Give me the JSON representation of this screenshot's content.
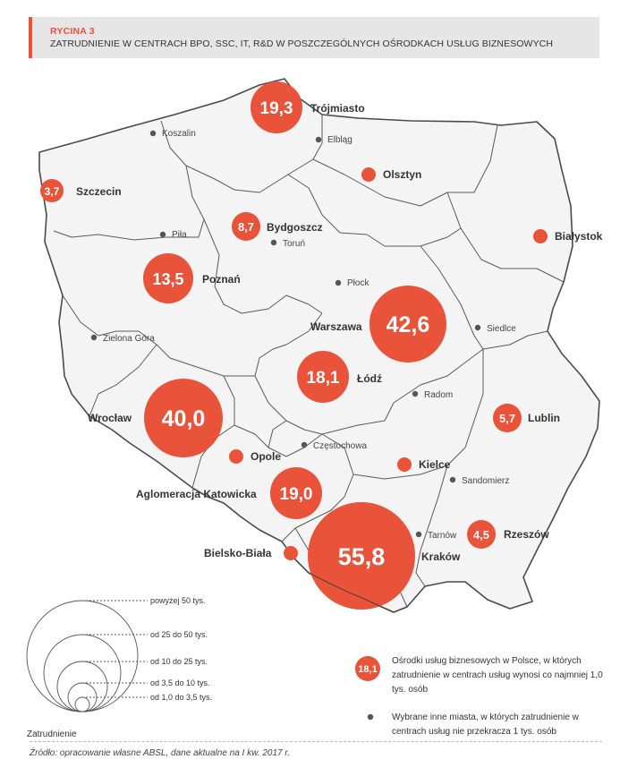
{
  "header": {
    "label": "RYCINA 3",
    "title": "ZATRUDNIENIE W CENTRACH BPO, SSC, IT, R&D W POSZCZEGÓLNYCH OŚRODKACH USŁUG BIZNESOWYCH"
  },
  "colors": {
    "accent": "#e8533a",
    "map_fill": "#f4f4f4",
    "map_border": "#4a4a4a",
    "dot": "#555555"
  },
  "centers": [
    {
      "name": "Trójmiasto",
      "value": "19,3",
      "n": 19.3
    },
    {
      "name": "Szczecin",
      "value": "3,7",
      "n": 3.7
    },
    {
      "name": "Olsztyn",
      "value": "",
      "n": 0.8
    },
    {
      "name": "Bydgoszcz",
      "value": "8,7",
      "n": 8.7
    },
    {
      "name": "Białystok",
      "value": "",
      "n": 0.8
    },
    {
      "name": "Poznań",
      "value": "13,5",
      "n": 13.5
    },
    {
      "name": "Warszawa",
      "value": "42,6",
      "n": 42.6
    },
    {
      "name": "Łódź",
      "value": "18,1",
      "n": 18.1
    },
    {
      "name": "Lublin",
      "value": "5,7",
      "n": 5.7
    },
    {
      "name": "Wrocław",
      "value": "40,0",
      "n": 40.0
    },
    {
      "name": "Opole",
      "value": "",
      "n": 0.8
    },
    {
      "name": "Kielce",
      "value": "",
      "n": 0.8
    },
    {
      "name": "Aglomeracja Katowicka",
      "value": "19,0",
      "n": 19.0
    },
    {
      "name": "Rzeszów",
      "value": "4,5",
      "n": 4.5
    },
    {
      "name": "Bielsko-Biała",
      "value": "",
      "n": 0.8
    },
    {
      "name": "Kraków",
      "value": "55,8",
      "n": 55.8
    }
  ],
  "other_cities": [
    "Koszalin",
    "Elbląg",
    "Piła",
    "Toruń",
    "Płock",
    "Siedlce",
    "Zielona Góra",
    "Radom",
    "Częstochowa",
    "Sandomierz",
    "Tarnów"
  ],
  "legend": {
    "size_title": "Zatrudnienie",
    "size_classes": [
      "powyżej 50 tys.",
      "od 25 do 50 tys.",
      "od 10 do 25 tys.",
      "od 3,5 do 10 tys.",
      "od 1,0 do 3,5 tys."
    ],
    "sample_value": "18,1",
    "circle_text": "Ośrodki usług biznesowych w Polsce, w których zatrudnienie w centrach usług wynosi co najmniej 1,0 tys. osób",
    "dot_text": "Wybrane inne miasta, w których zatrudnienie w centrach usług nie przekracza 1 tys. osób"
  },
  "source": "Źródło: opracowanie własne ABSL, dane aktualne na I kw. 2017 r."
}
